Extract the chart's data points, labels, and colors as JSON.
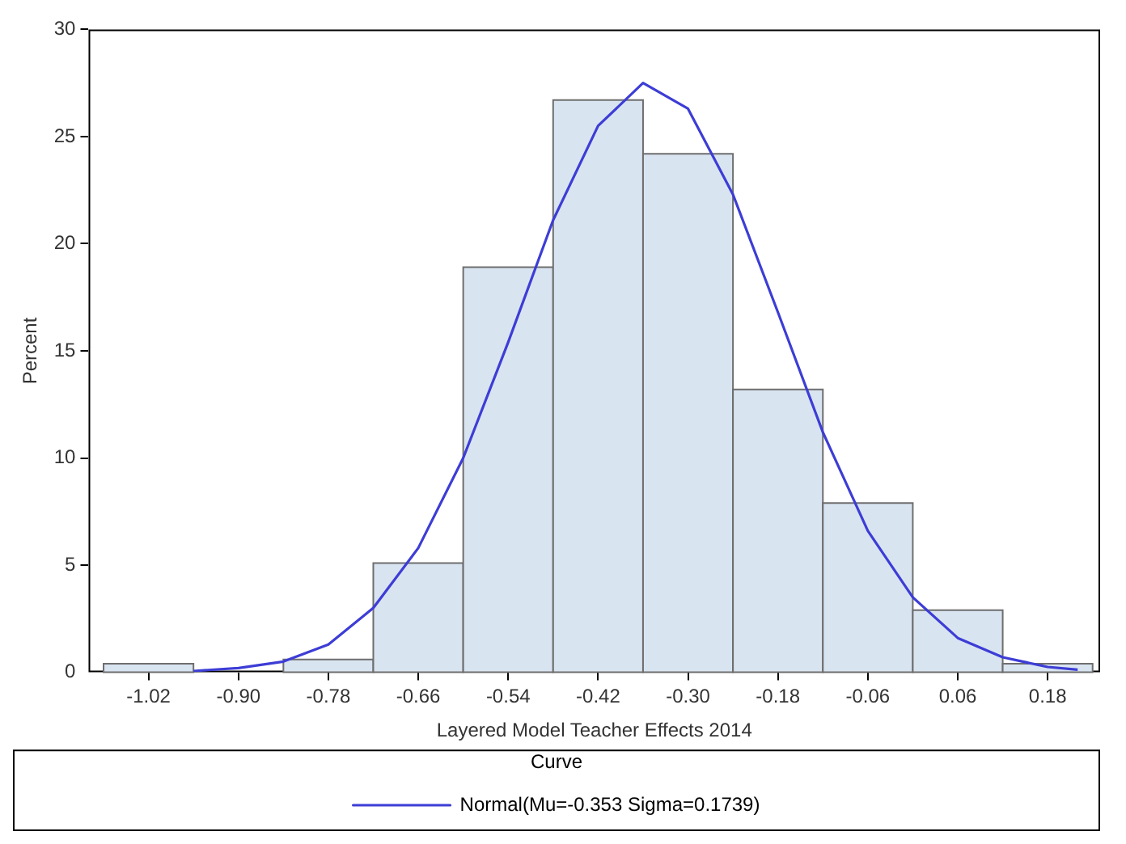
{
  "chart_data": {
    "type": "histogram",
    "xlabel": "Layered Model Teacher Effects 2014",
    "ylabel": "Percent",
    "legend_title": "Curve",
    "legend": "bottom",
    "grid": false,
    "bins": [
      -1.08,
      -0.96,
      -0.84,
      -0.72,
      -0.6,
      -0.48,
      -0.36,
      -0.24,
      -0.12,
      0,
      0.12,
      0.24
    ],
    "values": [
      0.4,
      0,
      0.6,
      5.1,
      18.9,
      26.7,
      24.2,
      13.2,
      7.9,
      2.9,
      0.4
    ],
    "color": "#d9e4f1",
    "xlim": [
      -1.1,
      0.25
    ],
    "xticks": [
      -1.02,
      {
        "value": -0.9,
        "label": "-0.90"
      },
      -0.78,
      -0.66,
      -0.54,
      -0.42,
      {
        "value": -0.3,
        "label": "-0.30"
      },
      -0.18,
      -0.06,
      0.06,
      0.18
    ],
    "ylim": [
      0,
      30
    ],
    "yticks": [
      0,
      5,
      10,
      15,
      20,
      25,
      30
    ],
    "series": [
      {
        "type": "line",
        "name": "Normal(Mu=-0.353 Sigma=0.1739)",
        "color": "#3d3dd6",
        "marker": "none",
        "x": [
          -0.96,
          -0.9,
          -0.84,
          -0.78,
          -0.72,
          -0.66,
          -0.6,
          -0.54,
          -0.48,
          -0.42,
          -0.36,
          -0.3,
          -0.24,
          -0.18,
          -0.12,
          -0.06,
          0,
          0.06,
          0.12,
          0.18,
          0.22
        ],
        "values": [
          0.06,
          0.2,
          0.5,
          1.3,
          3,
          5.8,
          10,
          15.4,
          21.1,
          25.5,
          27.5,
          26.3,
          22.3,
          16.8,
          11.2,
          6.6,
          3.5,
          1.6,
          0.7,
          0.25,
          0.12
        ]
      }
    ]
  }
}
